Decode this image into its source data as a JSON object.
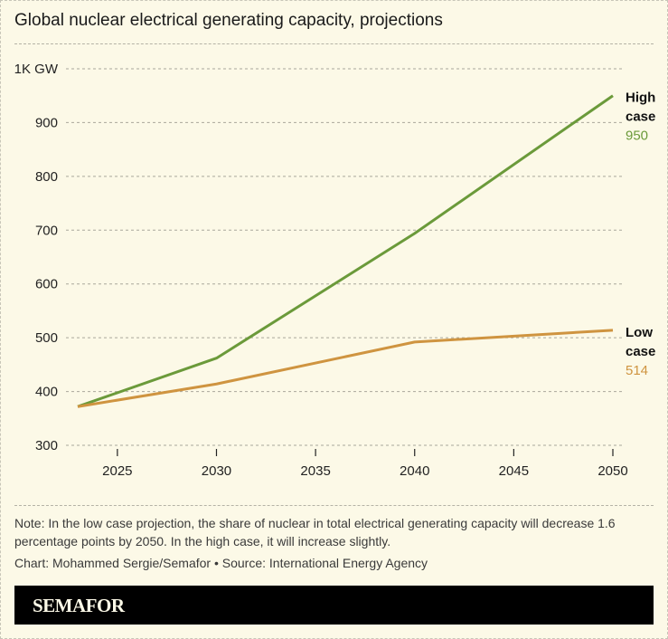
{
  "chart_data": {
    "type": "line",
    "title": "Global nuclear electrical generating capacity, projections",
    "xlabel": "",
    "ylabel": "",
    "xlim": [
      2023,
      2050
    ],
    "ylim": [
      300,
      1000
    ],
    "x_ticks": [
      2025,
      2030,
      2035,
      2040,
      2045,
      2050
    ],
    "x_tick_labels": [
      "2025",
      "2030",
      "2035",
      "2040",
      "2045",
      "2050"
    ],
    "y_ticks": [
      300,
      400,
      500,
      600,
      700,
      800,
      900,
      1000
    ],
    "y_tick_labels": [
      "300",
      "400",
      "500",
      "600",
      "700",
      "800",
      "900",
      "1K GW"
    ],
    "grid": true,
    "series": [
      {
        "name": "High case",
        "end_label": "950",
        "color": "#6b9a3a",
        "x": [
          2023,
          2030,
          2040,
          2050
        ],
        "values": [
          372,
          462,
          694,
          950
        ]
      },
      {
        "name": "Low case",
        "end_label": "514",
        "color": "#cf9440",
        "x": [
          2023,
          2030,
          2040,
          2050
        ],
        "values": [
          372,
          414,
          492,
          514
        ]
      }
    ]
  },
  "note": "Note: In the low case projection, the share of nuclear in total electrical generating capacity will decrease 1.6 percentage points by 2050. In the high case, it will increase slightly.",
  "credit": "Chart: Mohammed Sergie/Semafor • Source: International Energy Agency",
  "brand": "SEMAFOR"
}
